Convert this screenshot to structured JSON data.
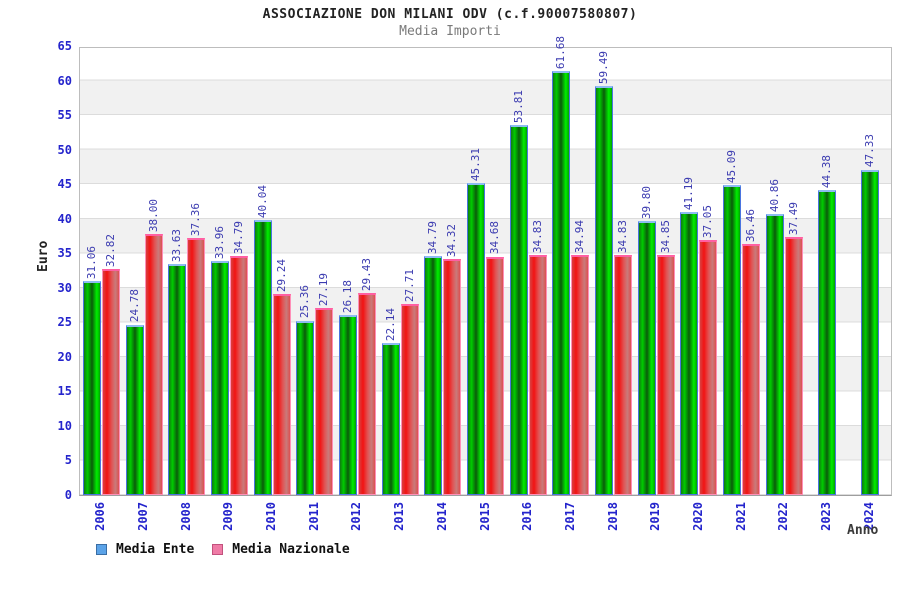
{
  "header": {
    "title": "ASSOCIAZIONE DON MILANI ODV (c.f.90007580807)",
    "subtitle": "Media Importi"
  },
  "axes": {
    "y_title": "Euro",
    "x_title": "Anno"
  },
  "legend": {
    "items": [
      {
        "label": "Media Ente",
        "fill": "#5ba3e8",
        "border": "#3a6ea5"
      },
      {
        "label": "Media Nazionale",
        "fill": "#ef7ba6",
        "border": "#c2517d"
      }
    ]
  },
  "colors": {
    "bar_ente": "#00cc00",
    "bar_nazionale": "#e03535",
    "tick_label": "#2424cc",
    "value_label": "#3b3bb0",
    "band_gray": "#f1f1f1",
    "band_white": "#ffffff"
  },
  "chart_data": {
    "type": "bar",
    "title": "ASSOCIAZIONE DON MILANI ODV (c.f.90007580807)",
    "subtitle": "Media Importi",
    "xlabel": "Anno",
    "ylabel": "Euro",
    "ylim": [
      0,
      65
    ],
    "y_tick_step": 5,
    "grid": "alternating-bands",
    "legend_position": "bottom-left",
    "categories": [
      "2006",
      "2007",
      "2008",
      "2009",
      "2010",
      "2011",
      "2012",
      "2013",
      "2014",
      "2015",
      "2016",
      "2017",
      "2018",
      "2019",
      "2020",
      "2021",
      "2022",
      "2023",
      "2024"
    ],
    "series": [
      {
        "name": "Media Ente",
        "values": [
          31.06,
          24.78,
          33.63,
          33.96,
          40.04,
          25.36,
          26.18,
          22.14,
          34.79,
          45.31,
          53.81,
          61.68,
          59.49,
          39.8,
          41.19,
          45.09,
          40.86,
          44.38,
          47.33
        ]
      },
      {
        "name": "Media Nazionale",
        "values": [
          32.82,
          38.0,
          37.36,
          34.79,
          29.24,
          27.19,
          29.43,
          27.71,
          34.32,
          34.68,
          34.83,
          34.94,
          34.83,
          34.85,
          37.05,
          36.46,
          37.49,
          null,
          null
        ]
      }
    ]
  }
}
